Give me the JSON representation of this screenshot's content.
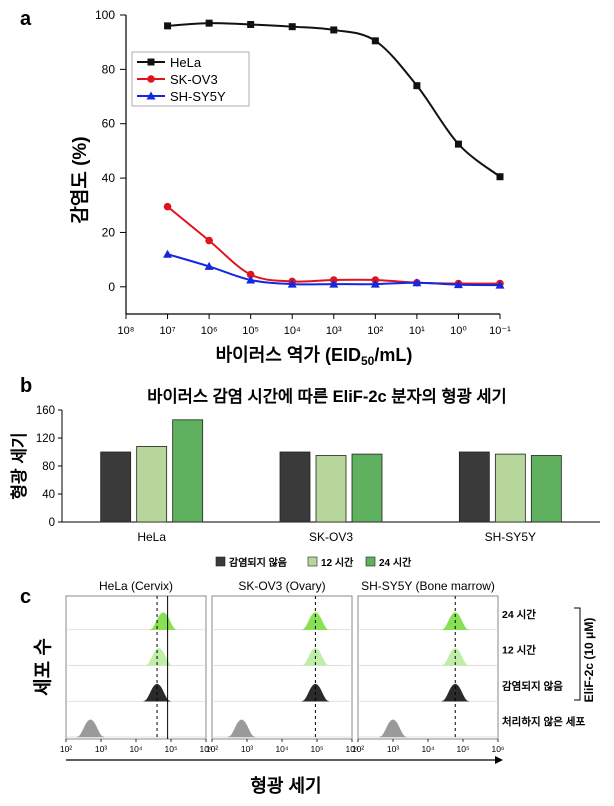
{
  "panels": [
    "a",
    "b",
    "c"
  ],
  "chart_data": [
    {
      "type": "line",
      "panel": "a",
      "xlabel": "바이러스 역가 (EID50/mL)",
      "ylabel": "감염도 (%)",
      "x_scale": "log",
      "x_reversed": true,
      "xlim": [
        100000000,
        0.1
      ],
      "ylim": [
        -10,
        100
      ],
      "yticks": [
        0,
        20,
        40,
        60,
        80,
        100
      ],
      "xtick_labels": [
        "10⁸",
        "10⁷",
        "10⁶",
        "10⁵",
        "10⁴",
        "10³",
        "10²",
        "10¹",
        "10⁰",
        "10⁻¹"
      ],
      "legend_position": "top-left",
      "series": [
        {
          "name": "HeLa",
          "color": "#111111",
          "marker": "square",
          "x": [
            10000000,
            1000000,
            100000,
            10000,
            1000,
            100,
            10,
            1,
            0.1
          ],
          "y": [
            96,
            97,
            96.5,
            95.7,
            94.5,
            90.5,
            74,
            52.5,
            40.5
          ]
        },
        {
          "name": "SK-OV3",
          "color": "#e0141e",
          "marker": "circle",
          "x": [
            10000000,
            1000000,
            100000,
            10000,
            1000,
            100,
            10,
            1,
            0.1
          ],
          "y": [
            29.5,
            17,
            4.5,
            2,
            2.5,
            2.5,
            1.5,
            1.2,
            1.2
          ]
        },
        {
          "name": "SH-SY5Y",
          "color": "#1428e0",
          "marker": "triangle",
          "x": [
            10000000,
            1000000,
            100000,
            10000,
            1000,
            100,
            10,
            1,
            0.1
          ],
          "y": [
            12,
            7.5,
            2.5,
            1,
            1,
            1,
            1.5,
            0.8,
            0.6
          ]
        }
      ]
    },
    {
      "type": "bar",
      "panel": "b",
      "title": "바이러스 감염 시간에 따른 EliF-2c 분자의 형광 세기",
      "ylabel": "형광 세기",
      "ylim": [
        0,
        160
      ],
      "yticks": [
        0,
        40,
        80,
        120,
        160
      ],
      "categories": [
        "HeLa",
        "SK-OV3",
        "SH-SY5Y"
      ],
      "legend_position": "bottom",
      "series": [
        {
          "name": "감염되지 않음",
          "color": "#3a3a3a",
          "values": [
            100,
            100,
            100
          ]
        },
        {
          "name": "12 시간",
          "color": "#b7d69b",
          "values": [
            108,
            95,
            97
          ]
        },
        {
          "name": "24 시간",
          "color": "#5fb05f",
          "values": [
            146,
            97,
            95
          ]
        }
      ]
    },
    {
      "type": "histogram",
      "panel": "c",
      "xlabel": "형광 세기",
      "ylabel": "세포 수",
      "x_scale": "log",
      "xlim": [
        100,
        1000000
      ],
      "xtick_labels": [
        "10²",
        "10³",
        "10⁴",
        "10⁵",
        "10⁶"
      ],
      "bracket_label": "EliF-2c (10 μM)",
      "columns": [
        {
          "title": "HeLa (Cervix)",
          "dashed_line_x": 40000,
          "solid_line_x": 80000
        },
        {
          "title": "SK-OV3 (Ovary)",
          "dashed_line_x": 90000
        },
        {
          "title": "SH-SY5Y (Bone marrow)",
          "dashed_line_x": 60000
        }
      ],
      "rows": [
        {
          "name": "24 시간",
          "color": "#88e055",
          "peaks": [
            60000,
            90000,
            60000
          ]
        },
        {
          "name": "12 시간",
          "color": "#c0eea8",
          "peaks": [
            45000,
            90000,
            60000
          ]
        },
        {
          "name": "감염되지 않음",
          "color": "#2a2a2a",
          "peaks": [
            40000,
            90000,
            60000
          ]
        },
        {
          "name": "처리하지 않은 세포",
          "color": "#9a9a9a",
          "peaks": [
            500,
            700,
            1000
          ]
        }
      ]
    }
  ]
}
